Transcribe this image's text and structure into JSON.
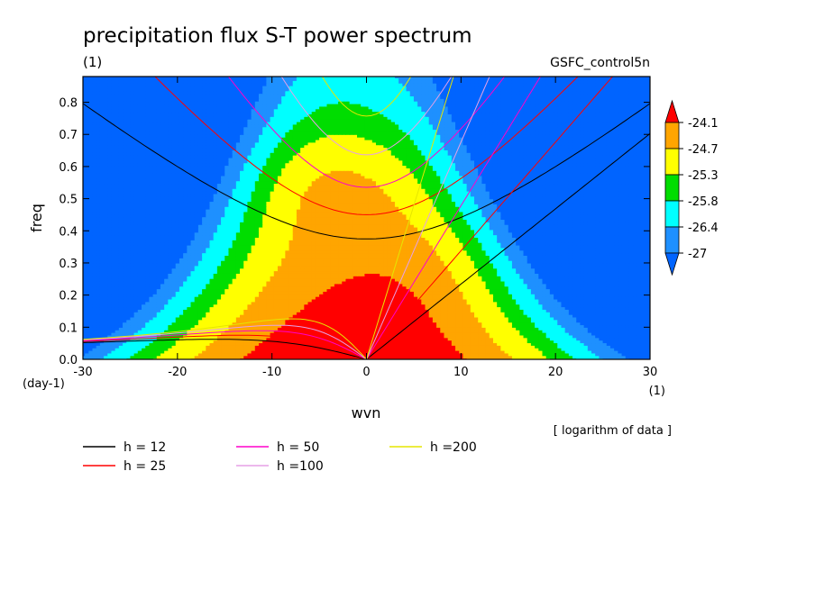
{
  "chart_data": {
    "type": "heatmap",
    "title": "precipitation flux S-T power spectrum",
    "subtitle_left": "(1)",
    "subtitle_right": "GSFC_control5n",
    "xlabel": "wvn",
    "ylabel": "freq",
    "x_unit": "(1)",
    "y_unit": "(day-1)",
    "xlim": [
      -30,
      30
    ],
    "ylim": [
      0,
      0.88
    ],
    "xticks": [
      "-30",
      "-20",
      "-10",
      "0",
      "10",
      "20",
      "30"
    ],
    "xtick_values": [
      -30,
      -20,
      -10,
      0,
      10,
      20,
      30
    ],
    "yticks": [
      "0.0",
      "0.1",
      "0.2",
      "0.3",
      "0.4",
      "0.5",
      "0.6",
      "0.7",
      "0.8"
    ],
    "ytick_values": [
      0,
      0.1,
      0.2,
      0.3,
      0.4,
      0.5,
      0.6,
      0.7,
      0.8
    ],
    "note": "[ logarithm of data ]",
    "colorbar": {
      "levels": [
        "-24.1",
        "-24.7",
        "-25.3",
        "-25.8",
        "-26.4",
        "-27"
      ],
      "colors": [
        "#ff0000",
        "#ffa500",
        "#ffff00",
        "#00dd00",
        "#00ffff",
        "#1e90ff",
        "#0064ff"
      ],
      "below_color": "#0064ff",
      "above_color": "#ff0000"
    },
    "fill_levels": [
      {
        "level": "below -27",
        "color": "#0064ff"
      },
      {
        "level": "-27",
        "color": "#1e90ff"
      },
      {
        "level": "-26.4",
        "color": "#00ffff"
      },
      {
        "level": "-25.8",
        "color": "#00dd00"
      },
      {
        "level": "-25.3",
        "color": "#ffff00"
      },
      {
        "level": "-24.7",
        "color": "#ffa500"
      },
      {
        "level": "-24.1",
        "color": "#ff0000"
      }
    ],
    "dispersion_curves": [
      {
        "label": "h = 12",
        "color": "#000000"
      },
      {
        "label": "h = 25",
        "color": "#ff0000"
      },
      {
        "label": "h = 50",
        "color": "#ff00cc"
      },
      {
        "label": "h =100",
        "color": "#e6a0e6"
      },
      {
        "label": "h =200",
        "color": "#e6e600"
      }
    ]
  }
}
